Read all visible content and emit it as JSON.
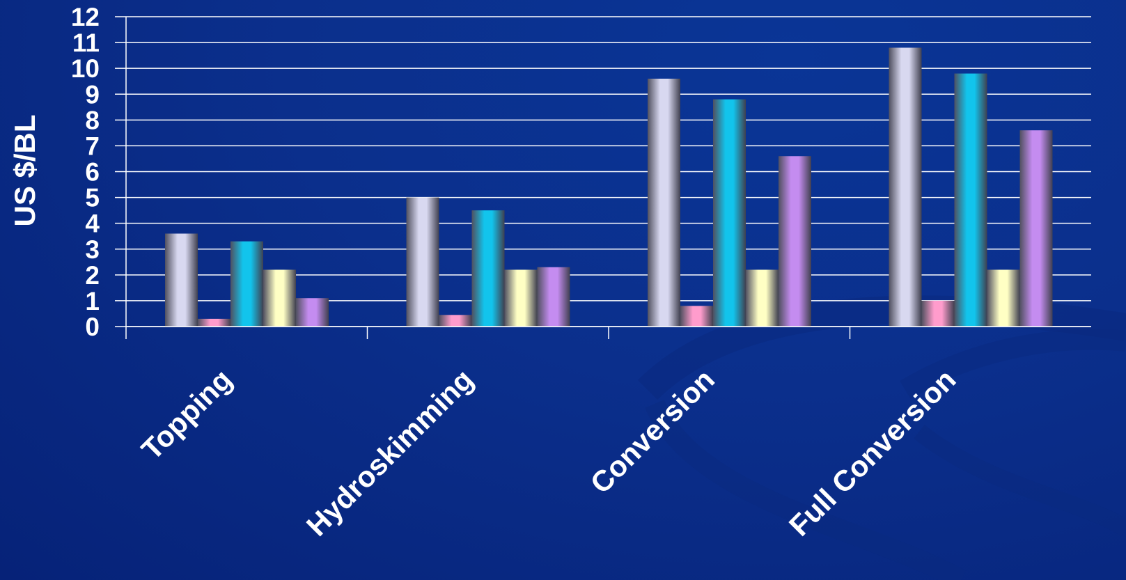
{
  "chart_data": {
    "type": "bar",
    "title": "",
    "xlabel": "",
    "ylabel": "US $/BL",
    "ylim": [
      0,
      12
    ],
    "yticks": [
      "0",
      "1",
      "2",
      "3",
      "4",
      "5",
      "6",
      "7",
      "8",
      "9",
      "10",
      "11",
      "12"
    ],
    "grid": true,
    "categories": [
      "Topping",
      "Hydroskimming",
      "Conversion",
      "Full Conversion"
    ],
    "series": [
      {
        "values": [
          3.6,
          5.0,
          9.6,
          10.8
        ],
        "color": "#d8d8f0"
      },
      {
        "values": [
          0.3,
          0.45,
          0.8,
          1.0
        ],
        "color": "#ff9ccc"
      },
      {
        "values": [
          3.3,
          4.5,
          8.8,
          9.8
        ],
        "color": "#12c4ec"
      },
      {
        "values": [
          2.2,
          2.2,
          2.2,
          2.2
        ],
        "color": "#ffffc4"
      },
      {
        "values": [
          1.1,
          2.3,
          6.6,
          7.6
        ],
        "color": "#c48cf0"
      }
    ]
  }
}
